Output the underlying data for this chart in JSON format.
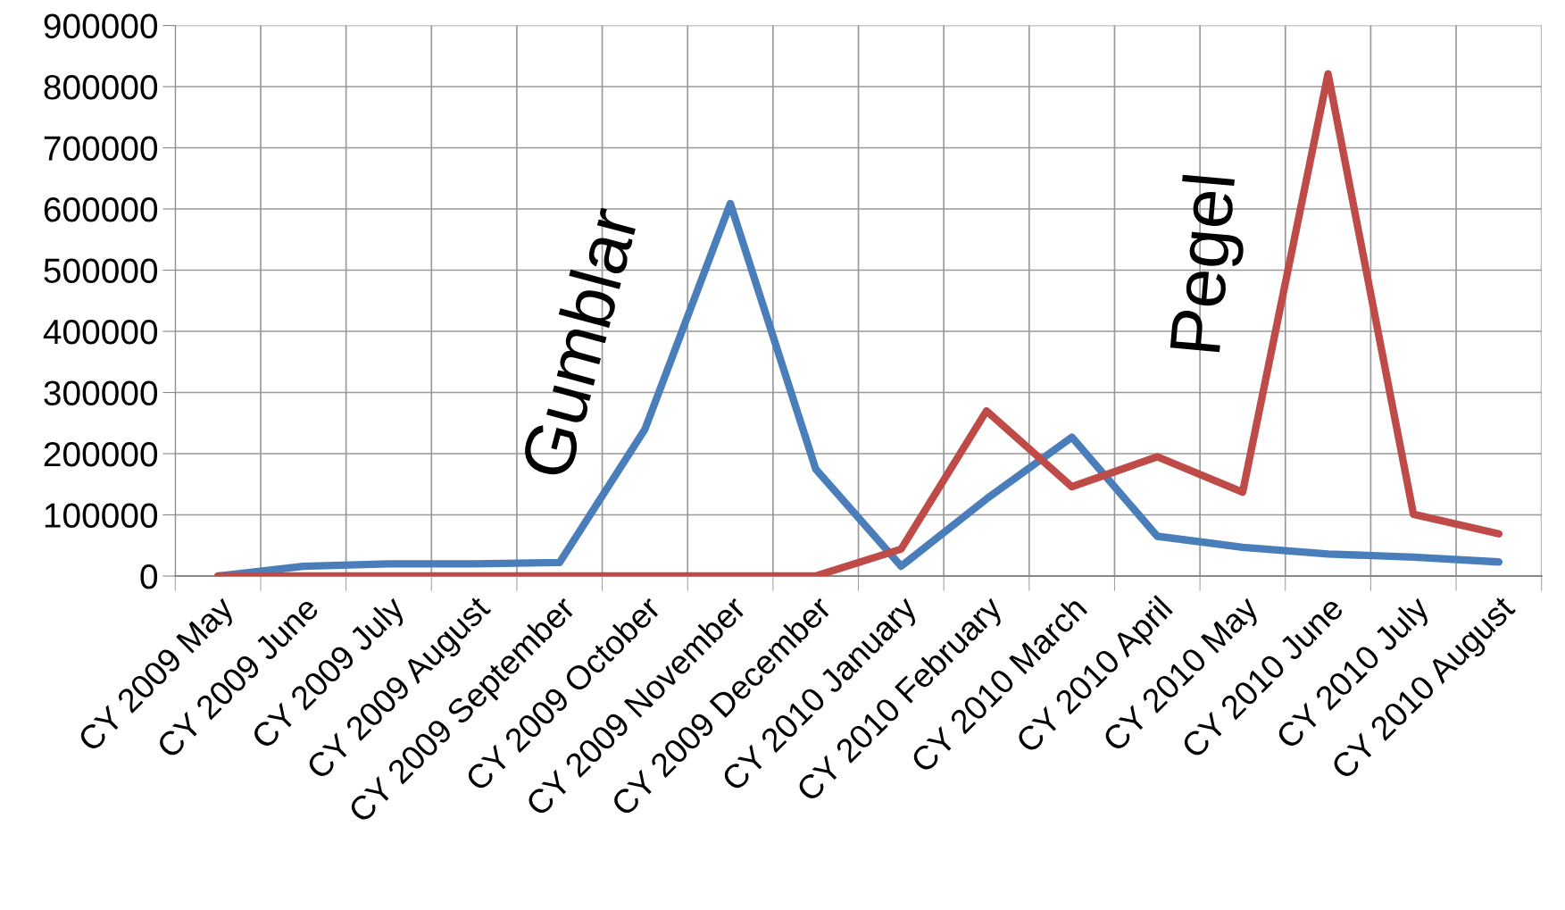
{
  "chart_data": {
    "type": "line",
    "categories": [
      "CY 2009 May",
      "CY 2009 June",
      "CY 2009 July",
      "CY 2009 August",
      "CY 2009 September",
      "CY 2009 October",
      "CY 2009 November",
      "CY 2009 December",
      "CY 2010 January",
      "CY 2010 February",
      "CY 2010 March",
      "CY 2010 April",
      "CY 2010 May",
      "CY 2010 June",
      "CY 2010 July",
      "CY 2010 August"
    ],
    "series": [
      {
        "name": "Gumblar",
        "color": "#4a7ebb",
        "values": [
          0,
          16000,
          20000,
          20000,
          22000,
          240000,
          609000,
          175000,
          16000,
          126000,
          227000,
          65000,
          47000,
          36000,
          31000,
          23000
        ]
      },
      {
        "name": "Pegel",
        "color": "#be4b48",
        "values": [
          0,
          0,
          0,
          0,
          0,
          0,
          0,
          0,
          44000,
          270000,
          146000,
          195000,
          137000,
          821000,
          101000,
          69000
        ]
      }
    ],
    "ylim": [
      0,
      900000
    ],
    "yticks": [
      0,
      100000,
      200000,
      300000,
      400000,
      500000,
      600000,
      700000,
      800000,
      900000
    ],
    "grid": true,
    "legend": false,
    "marker": "none",
    "line_style": "solid"
  }
}
